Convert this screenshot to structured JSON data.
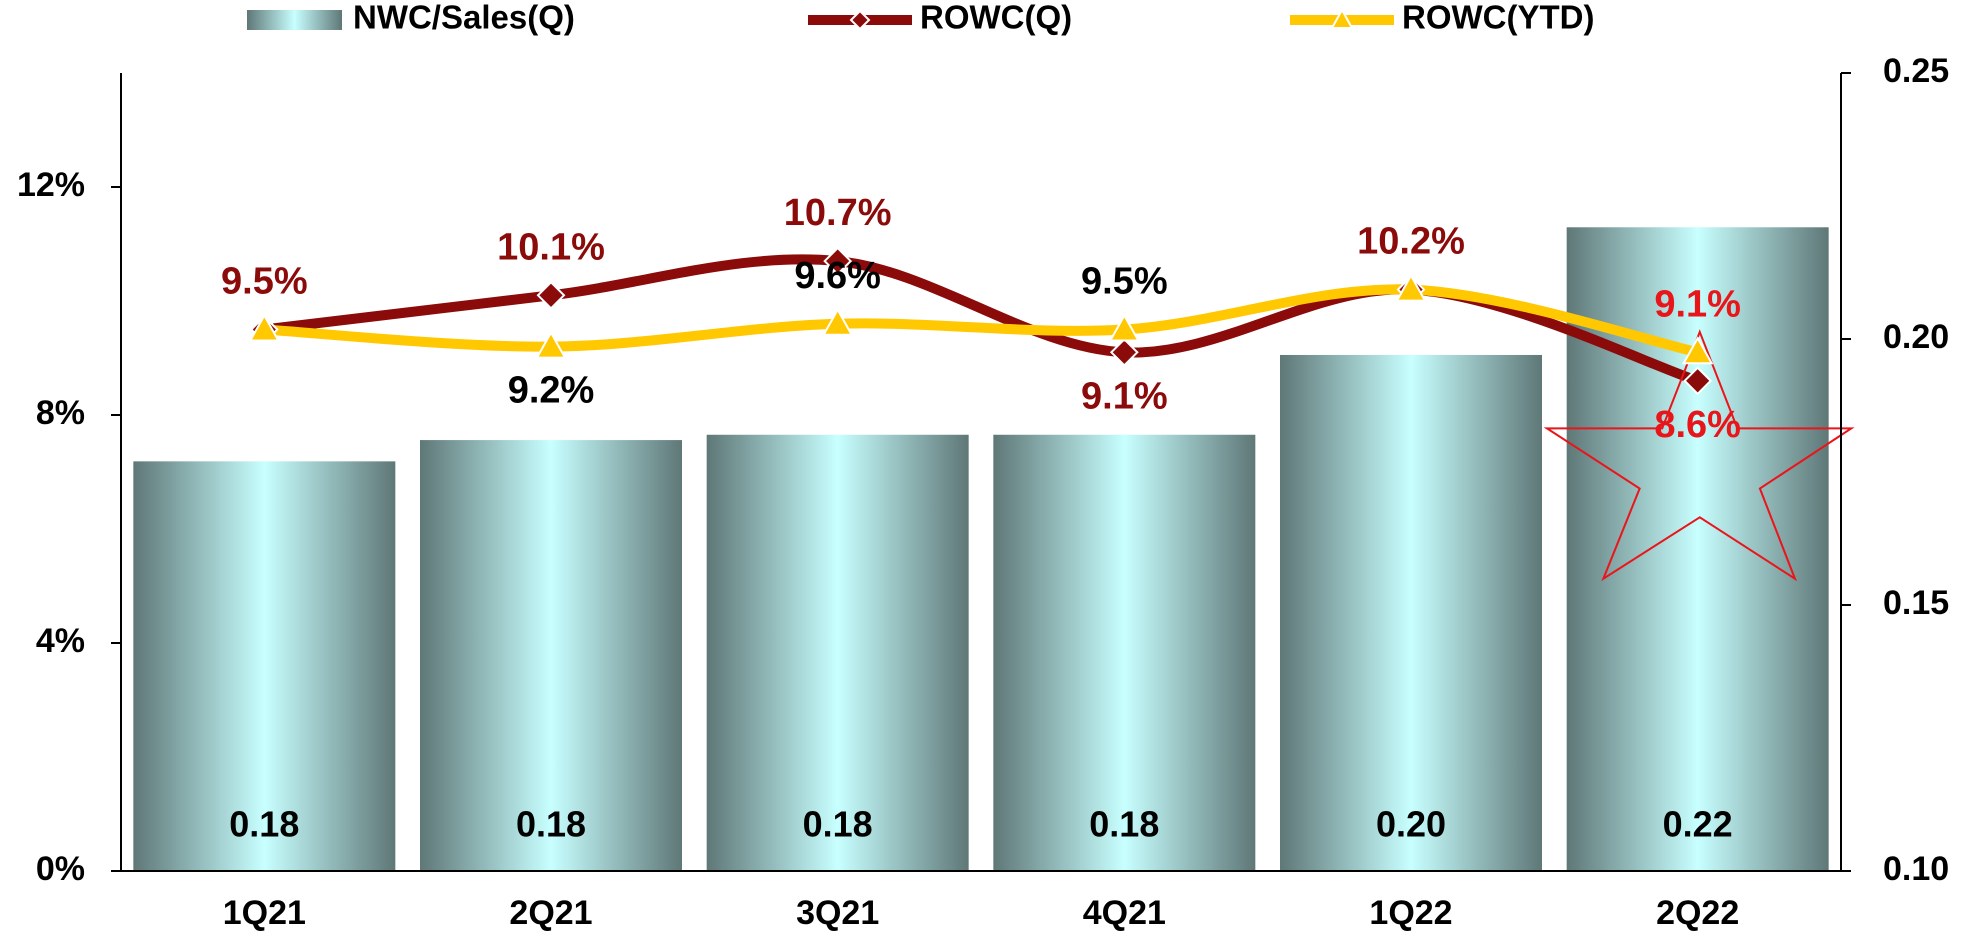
{
  "chart_data": {
    "type": "combo",
    "categories": [
      "1Q21",
      "2Q21",
      "3Q21",
      "4Q21",
      "1Q22",
      "2Q22"
    ],
    "ylim": [
      0,
      14
    ],
    "yticks": [
      {
        "value": 0,
        "label": "0%"
      },
      {
        "value": 4,
        "label": "4%"
      },
      {
        "value": 8,
        "label": "8%"
      },
      {
        "value": 12,
        "label": "12%"
      }
    ],
    "y2lim": [
      0.1,
      0.25
    ],
    "y2ticks": [
      {
        "value": 0.1,
        "label": "0.10"
      },
      0.15,
      {
        "value": 0.2,
        "label": "0.20"
      },
      0.25
    ],
    "series": [
      {
        "name": "NWC/Sales(Q)",
        "type": "bar",
        "axis": "y2",
        "color": "#c8ffff",
        "values": [
          0.177,
          0.181,
          0.182,
          0.182,
          0.197,
          0.221
        ],
        "value_labels": [
          "0.18",
          "0.18",
          "0.18",
          "0.18",
          "0.20",
          "0.22"
        ]
      },
      {
        "name": "ROWC(Q)",
        "type": "line",
        "color": "#8b0a0a",
        "values": [
          9.5,
          10.1,
          10.7,
          9.1,
          10.2,
          8.6
        ],
        "value_labels": [
          "9.5%",
          "10.1%",
          "10.7%",
          "9.1%",
          "10.2%",
          "8.6%"
        ]
      },
      {
        "name": "ROWC(YTD)",
        "type": "line",
        "color": "#ffc800",
        "values": [
          9.5,
          9.2,
          9.6,
          9.5,
          10.2,
          9.1
        ],
        "value_labels": [
          null,
          "9.2%",
          "9.6%",
          "9.5%",
          null,
          "9.1%"
        ]
      }
    ]
  }
}
